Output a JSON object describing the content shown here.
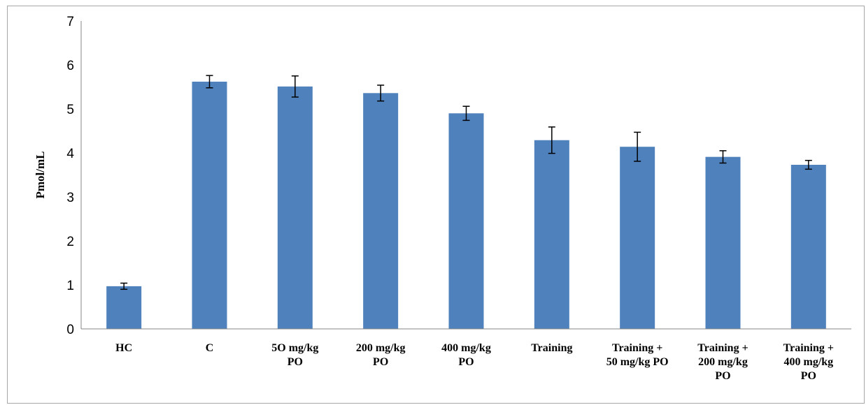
{
  "chart_data": {
    "type": "bar",
    "title": "",
    "xlabel": "",
    "ylabel": "Pmol/mL",
    "ylim": [
      0,
      7
    ],
    "yticks": [
      "0",
      "1",
      "2",
      "3",
      "4",
      "5",
      "6",
      "7"
    ],
    "grid": false,
    "legend": "none",
    "bar_color": "#4f81bd",
    "categories": [
      "HC",
      "C",
      "5O mg/kg PO",
      "200 mg/kg PO",
      "400 mg/kg PO",
      "Training",
      "Training + 50 mg/kg PO",
      "Training + 200 mg/kg PO",
      "Training + 400 mg/kg PO"
    ],
    "category_label_lines": [
      [
        "HC"
      ],
      [
        "C"
      ],
      [
        "5O mg/kg",
        "PO"
      ],
      [
        "200 mg/kg",
        "PO"
      ],
      [
        "400 mg/kg",
        "PO"
      ],
      [
        "Training"
      ],
      [
        "Training +",
        "50 mg/kg PO"
      ],
      [
        "Training +",
        "200 mg/kg",
        "PO"
      ],
      [
        "Training +",
        "400 mg/kg",
        "PO"
      ]
    ],
    "values": [
      0.97,
      5.62,
      5.51,
      5.36,
      4.9,
      4.29,
      4.14,
      3.91,
      3.73
    ],
    "errors": [
      0.07,
      0.14,
      0.24,
      0.18,
      0.16,
      0.3,
      0.33,
      0.14,
      0.1
    ]
  }
}
